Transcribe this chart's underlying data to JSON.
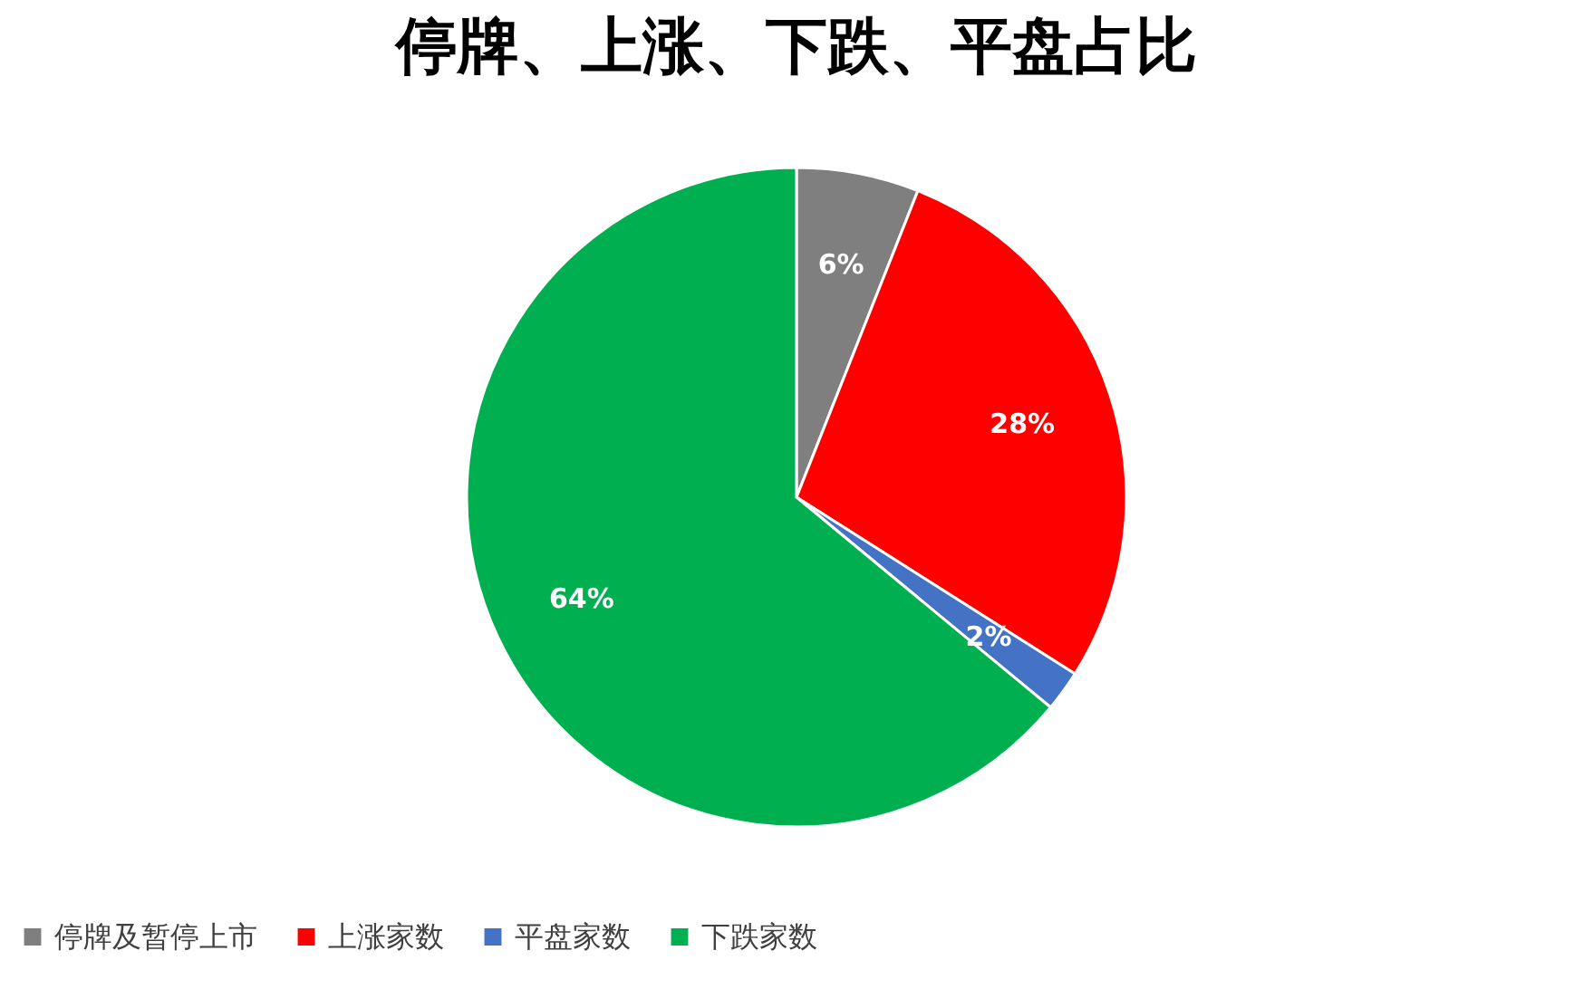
{
  "chart_data": {
    "type": "pie",
    "title": "停牌、上涨、下跌、平盘占比",
    "categories": [
      "停牌及暂停上市",
      "上涨家数",
      "平盘家数",
      "下跌家数"
    ],
    "values": [
      6,
      28,
      2,
      64
    ],
    "colors": [
      "#7f7f7f",
      "#ff0000",
      "#4472c4",
      "#00b050"
    ],
    "value_labels": [
      "6%",
      "28%",
      "2%",
      "64%"
    ],
    "legend": "bottom"
  }
}
